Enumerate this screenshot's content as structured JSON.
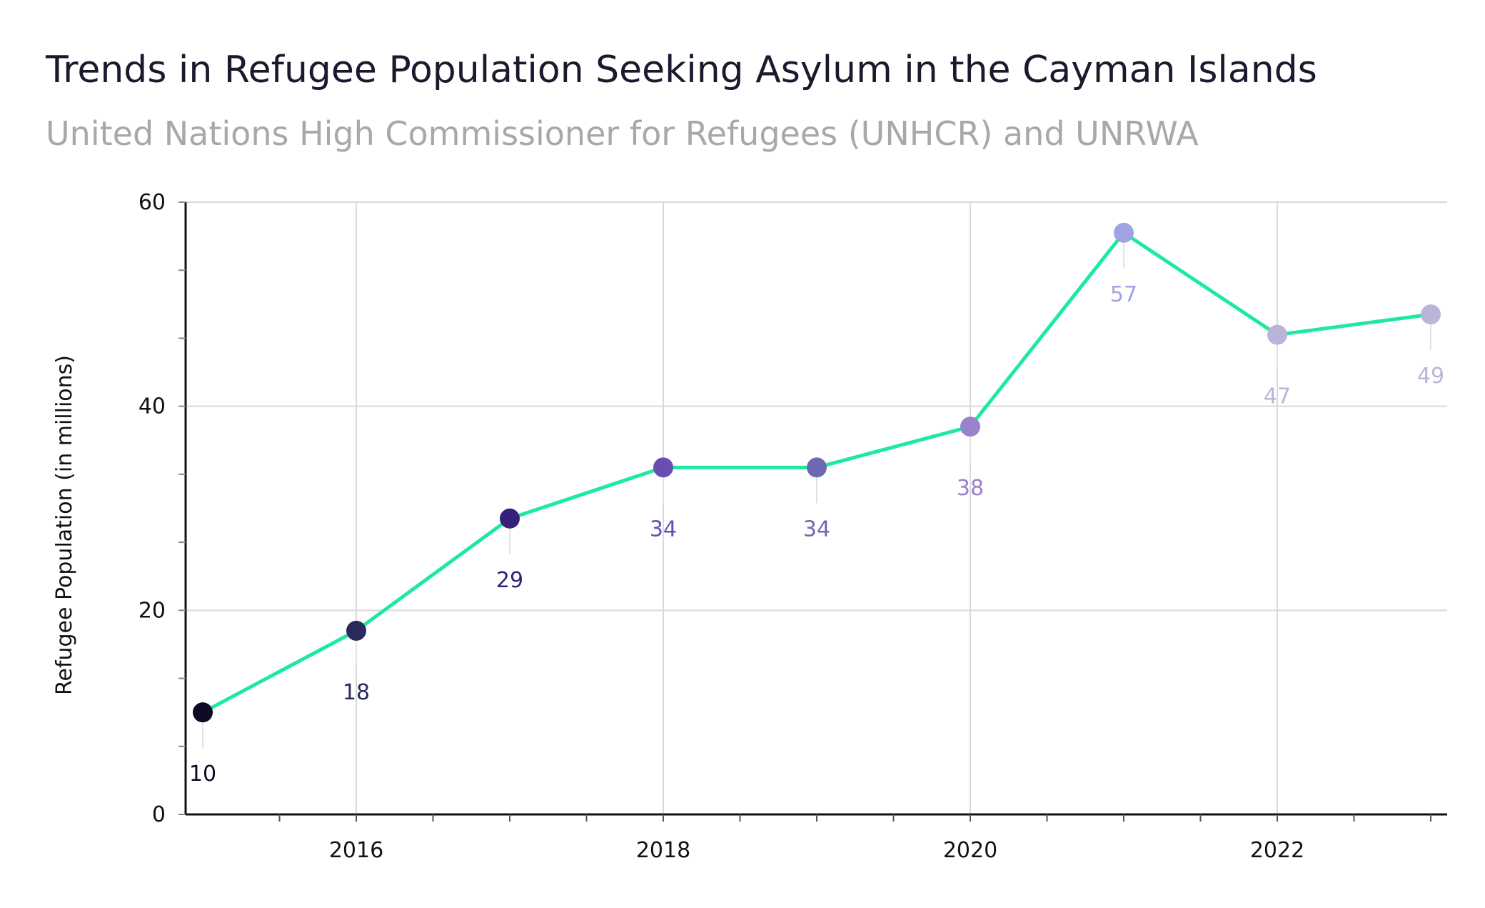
{
  "chart_data": {
    "type": "line",
    "title": "Trends in Refugee Population Seeking Asylum in the Cayman Islands",
    "subtitle": "United Nations High Commissioner for Refugees (UNHCR) and UNRWA",
    "xlabel": "",
    "ylabel": "Refugee Population (in millions)",
    "x": [
      2015,
      2016,
      2017,
      2018,
      2019,
      2020,
      2021,
      2022,
      2023
    ],
    "values": [
      10,
      18,
      29,
      34,
      34,
      38,
      57,
      47,
      49
    ],
    "point_colors": [
      "#0d0a26",
      "#2a2b5c",
      "#35207a",
      "#6a4db2",
      "#6b69b2",
      "#9a82cc",
      "#a0a2e2",
      "#b9b5da",
      "#b9b5da"
    ],
    "line_color": "#1de9a0",
    "xticks": [
      "2016",
      "2018",
      "2020",
      "2022"
    ],
    "yticks": [
      "0",
      "20",
      "40",
      "60"
    ],
    "ylim": [
      0,
      60
    ],
    "xlim": [
      2014.9,
      2023.1
    ],
    "grid": true,
    "data_labels": true
  }
}
